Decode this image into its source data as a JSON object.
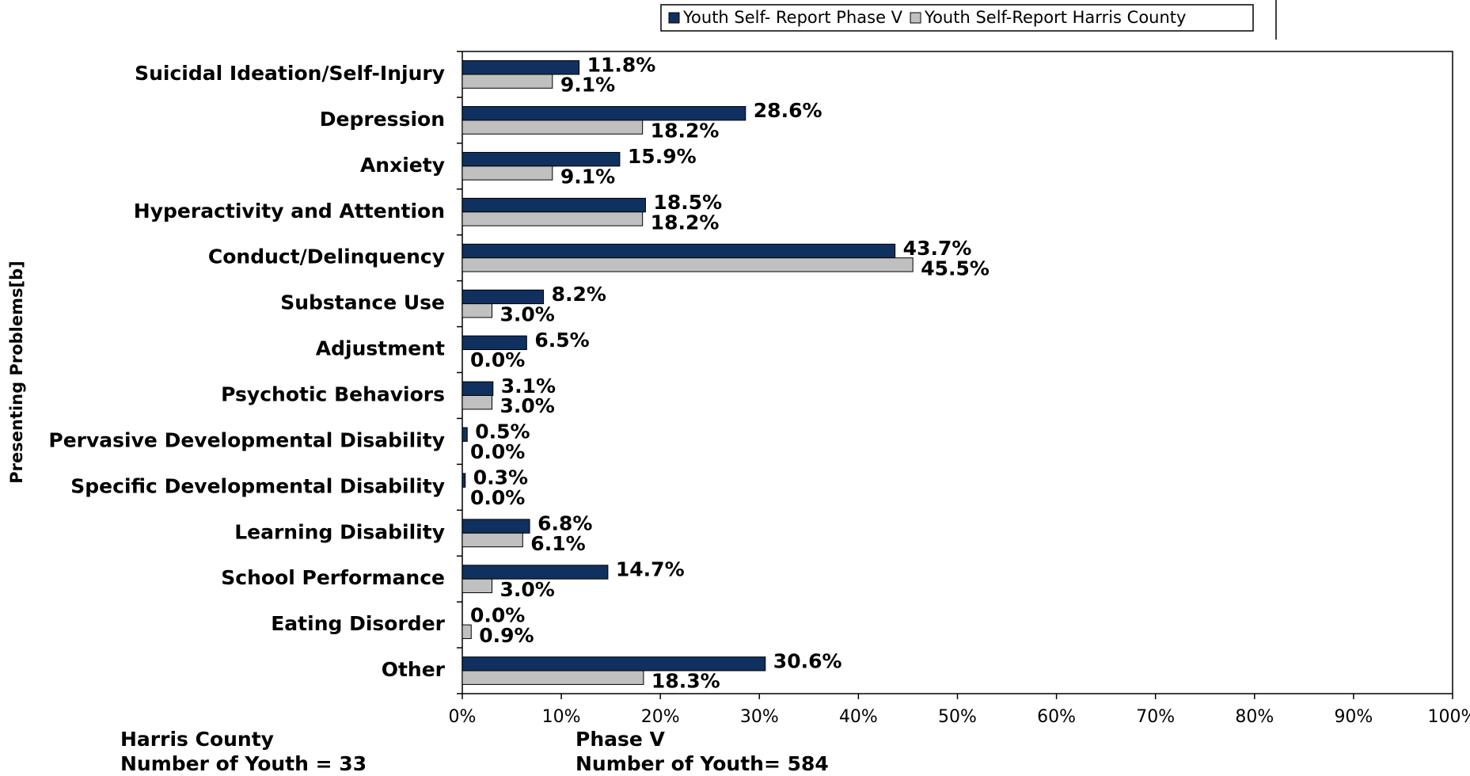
{
  "chart_data": {
    "type": "bar",
    "orientation": "horizontal",
    "y_label": "Presenting Problems[b]",
    "categories": [
      "Suicidal Ideation/Self-Injury",
      "Depression",
      "Anxiety",
      "Hyperactivity and Attention",
      "Conduct/Delinquency",
      "Substance Use",
      "Adjustment",
      "Psychotic Behaviors",
      "Pervasive Developmental Disability",
      "Specific Developmental Disability",
      "Learning Disability",
      "School Performance",
      "Eating Disorder",
      "Other"
    ],
    "series": [
      {
        "name": "Youth Self- Report Phase V",
        "color": "#10305f",
        "values": [
          11.8,
          28.6,
          15.9,
          18.5,
          43.7,
          8.2,
          6.5,
          3.1,
          0.5,
          0.3,
          6.8,
          14.7,
          0.0,
          30.6
        ],
        "value_labels": [
          "11.8%",
          "28.6%",
          "15.9%",
          "18.5%",
          "43.7%",
          "8.2%",
          "6.5%",
          "3.1%",
          "0.5%",
          "0.3%",
          "6.8%",
          "14.7%",
          "0.0%",
          "30.6%"
        ]
      },
      {
        "name": "Youth Self-Report Harris County",
        "color": "#c0c0c0",
        "values": [
          9.1,
          18.2,
          9.1,
          18.2,
          45.5,
          3.0,
          0.0,
          3.0,
          0.0,
          0.0,
          6.1,
          3.0,
          0.9,
          18.3
        ],
        "value_labels": [
          "9.1%",
          "18.2%",
          "9.1%",
          "18.2%",
          "45.5%",
          "3.0%",
          "0.0%",
          "3.0%",
          "0.0%",
          "0.0%",
          "6.1%",
          "3.0%",
          "0.9%",
          "18.3%"
        ]
      }
    ],
    "xlim": [
      0,
      100
    ],
    "xticks": [
      {
        "value": 0,
        "label": "0%"
      },
      {
        "value": 10,
        "label": "10%"
      },
      {
        "value": 20,
        "label": "20%"
      },
      {
        "value": 30,
        "label": "30%"
      },
      {
        "value": 40,
        "label": "40%"
      },
      {
        "value": 50,
        "label": "50%"
      },
      {
        "value": 60,
        "label": "60%"
      },
      {
        "value": 70,
        "label": "70%"
      },
      {
        "value": 80,
        "label": "80%"
      },
      {
        "value": 90,
        "label": "90%"
      },
      {
        "value": 100,
        "label": "100%"
      }
    ],
    "legend": "top",
    "annotations": [
      "Harris County",
      "Number of Youth = 33",
      "Phase V",
      "Number of Youth= 584"
    ]
  }
}
